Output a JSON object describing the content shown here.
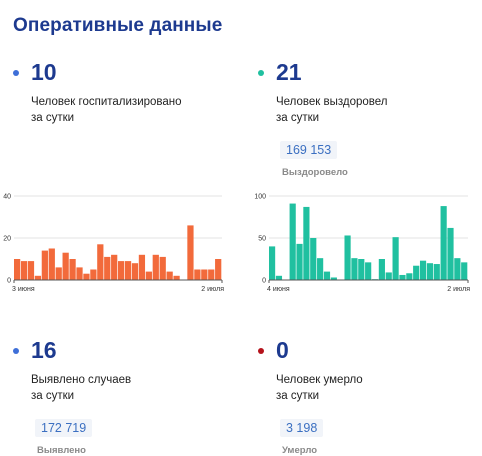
{
  "page": {
    "title": "Оперативные данные"
  },
  "stats": {
    "hospitalized": {
      "value": "10",
      "line1": "Человек госпитализировано",
      "line2": "за сутки",
      "color": "#3e6fd8"
    },
    "recovered": {
      "value": "21",
      "line1": "Человек выздоровел",
      "line2": "за сутки",
      "total": "169 153",
      "total_label": "Выздоровело",
      "color": "#20c0a0"
    },
    "cases": {
      "value": "16",
      "line1": "Выявлено случаев",
      "line2": "за сутки",
      "total": "172 719",
      "total_label": "Выявлено",
      "color": "#3e6fd8"
    },
    "deaths": {
      "value": "0",
      "line1": "Человек умерло",
      "line2": "за сутки",
      "total": "3 198",
      "total_label": "Умерло",
      "color": "#b5121b"
    }
  },
  "chart_data": [
    {
      "type": "bar",
      "title": "",
      "xlabel": "",
      "ylabel": "",
      "x_start_label": "3 июня",
      "x_end_label": "2 июля",
      "y_ticks": [
        "40",
        "20",
        "0"
      ],
      "ylim": [
        0,
        40
      ],
      "grid": true,
      "color": "#f26a3b",
      "values": [
        10,
        9,
        9,
        2,
        14,
        15,
        6,
        13,
        10,
        6,
        3,
        5,
        17,
        11,
        12,
        9,
        9,
        8,
        12,
        4,
        12,
        11,
        4,
        2,
        0,
        26,
        5,
        5,
        5,
        10
      ]
    },
    {
      "type": "bar",
      "title": "",
      "xlabel": "",
      "ylabel": "",
      "x_start_label": "4 июня",
      "x_end_label": "2 июля",
      "y_ticks": [
        "100",
        "50",
        "0"
      ],
      "ylim": [
        0,
        100
      ],
      "grid": true,
      "color": "#20c0a0",
      "values": [
        40,
        5,
        0,
        91,
        43,
        87,
        50,
        26,
        10,
        3,
        0,
        53,
        26,
        25,
        21,
        1,
        25,
        9,
        51,
        6,
        8,
        17,
        23,
        20,
        19,
        88,
        62,
        26,
        21
      ]
    }
  ]
}
